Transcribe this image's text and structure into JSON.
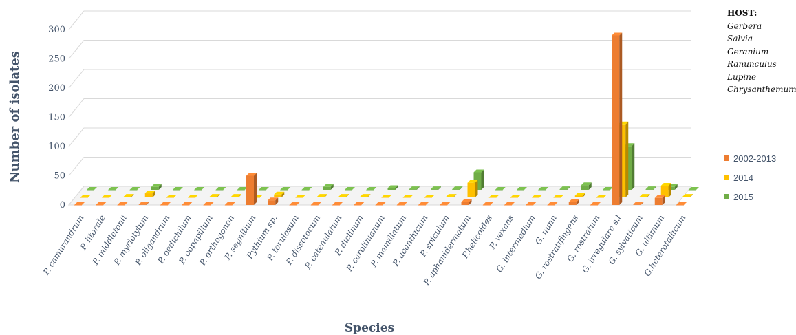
{
  "chart_data": {
    "type": "bar",
    "xlabel": "Species",
    "ylabel": "Number of isolates",
    "ylim": [
      0,
      300
    ],
    "yticks": [
      "0",
      "50",
      "100",
      "150",
      "200",
      "250",
      "300"
    ],
    "grid": true,
    "legend_position": "right",
    "categories": [
      "P. camurandrum",
      "P. litorale",
      "P. middletonii",
      "P. myriotylum",
      "P. oligandrum",
      "P. oedichilum",
      "P. oopapillum",
      "P. orthogonon",
      "P. segnitium",
      "Pythium sp.",
      "P. torulosum",
      "P. dissotocum",
      "P. catenulatum",
      "P. diclinum",
      "P. carolinianum",
      "P. mamillatum",
      "P. acanthicum",
      "P. spiculum",
      "P. aphanidermatum",
      "P.helicoides",
      "P. vexans",
      "G. intermedium",
      "G. nunn",
      "G. rostratifingens",
      "G. rostratum",
      "G. irregulare s.l",
      "G. sylvaticum",
      "G. ultimum",
      "G.heterotallicum"
    ],
    "series": [
      {
        "name": "2002-2013",
        "color": "#ed7d31",
        "values": [
          0,
          0,
          0,
          1,
          0,
          0,
          0,
          0,
          50,
          8,
          0,
          0,
          0,
          0,
          0,
          0,
          0,
          0,
          5,
          0,
          0,
          0,
          0,
          5,
          0,
          290,
          1,
          12,
          0
        ]
      },
      {
        "name": "2014",
        "color": "#ffc000",
        "values": [
          0,
          0,
          1,
          7,
          0,
          0,
          1,
          1,
          0,
          5,
          0,
          1,
          1,
          1,
          0,
          0,
          0,
          1,
          25,
          0,
          0,
          0,
          0,
          3,
          0,
          125,
          1,
          20,
          1
        ]
      },
      {
        "name": "2015",
        "color": "#70ad47",
        "values": [
          0,
          0,
          0,
          5,
          0,
          0,
          0,
          0,
          0,
          0,
          0,
          5,
          0,
          0,
          3,
          1,
          1,
          1,
          30,
          0,
          0,
          0,
          1,
          8,
          0,
          75,
          1,
          5,
          0
        ]
      }
    ]
  },
  "host": {
    "title": "HOST:",
    "items": [
      "Gerbera",
      "Salvia",
      "Geranium",
      "Ranunculus",
      "Lupine",
      "Chrysanthemum"
    ]
  }
}
